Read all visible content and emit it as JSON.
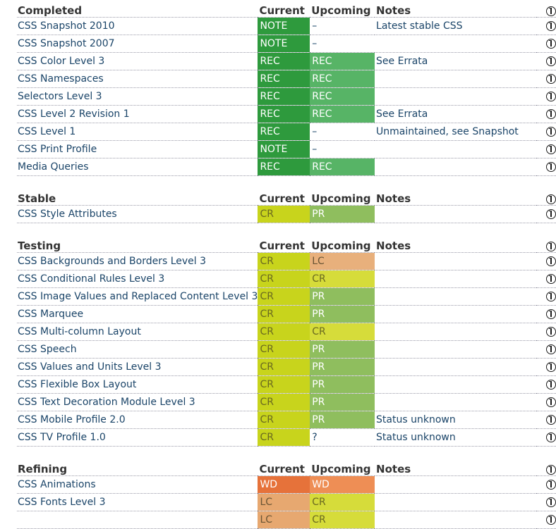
{
  "headers": {
    "current": "Current",
    "upcoming": "Upcoming",
    "notes": "Notes"
  },
  "sections": [
    {
      "title": "Completed",
      "rows": [
        {
          "name": "CSS Snapshot 2010",
          "current": "NOTE",
          "upcoming": "–",
          "notes": "Latest stable CSS",
          "cur_class": "s-NOTE",
          "up_class": "s-plain"
        },
        {
          "name": "CSS Snapshot 2007",
          "current": "NOTE",
          "upcoming": "–",
          "notes": "",
          "cur_class": "s-NOTE",
          "up_class": "s-plain"
        },
        {
          "name": "CSS Color Level 3",
          "current": "REC",
          "upcoming": "REC",
          "notes": "See Errata",
          "cur_class": "s-REC-cur",
          "up_class": "s-REC-up"
        },
        {
          "name": "CSS Namespaces",
          "current": "REC",
          "upcoming": "REC",
          "notes": "",
          "cur_class": "s-REC-cur",
          "up_class": "s-REC-up"
        },
        {
          "name": "Selectors Level 3",
          "current": "REC",
          "upcoming": "REC",
          "notes": "",
          "cur_class": "s-REC-cur",
          "up_class": "s-REC-up"
        },
        {
          "name": "CSS Level 2 Revision 1",
          "current": "REC",
          "upcoming": "REC",
          "notes": "See Errata",
          "cur_class": "s-REC-cur",
          "up_class": "s-REC-up"
        },
        {
          "name": "CSS Level 1",
          "current": "REC",
          "upcoming": "–",
          "notes": "Unmaintained, see Snapshot",
          "cur_class": "s-REC-cur",
          "up_class": "s-plain"
        },
        {
          "name": "CSS Print Profile",
          "current": "NOTE",
          "upcoming": "–",
          "notes": "",
          "cur_class": "s-NOTE",
          "up_class": "s-plain"
        },
        {
          "name": "Media Queries",
          "current": "REC",
          "upcoming": "REC",
          "notes": "",
          "cur_class": "s-REC-cur",
          "up_class": "s-REC-up"
        }
      ]
    },
    {
      "title": "Stable",
      "rows": [
        {
          "name": "CSS Style Attributes",
          "current": "CR",
          "upcoming": "PR",
          "notes": "",
          "cur_class": "s-CR",
          "up_class": "s-PR"
        }
      ]
    },
    {
      "title": "Testing",
      "rows": [
        {
          "name": "CSS Backgrounds and Borders Level 3",
          "current": "CR",
          "upcoming": "LC",
          "notes": "",
          "cur_class": "s-CR",
          "up_class": "s-LC"
        },
        {
          "name": "CSS Conditional Rules Level 3",
          "current": "CR",
          "upcoming": "CR",
          "notes": "",
          "cur_class": "s-CR",
          "up_class": "s-CRup"
        },
        {
          "name": "CSS Image Values and Replaced Content Level 3",
          "current": "CR",
          "upcoming": "PR",
          "notes": "",
          "cur_class": "s-CR",
          "up_class": "s-PR"
        },
        {
          "name": "CSS Marquee",
          "current": "CR",
          "upcoming": "PR",
          "notes": "",
          "cur_class": "s-CR",
          "up_class": "s-PR"
        },
        {
          "name": "CSS Multi-column Layout",
          "current": "CR",
          "upcoming": "CR",
          "notes": "",
          "cur_class": "s-CR",
          "up_class": "s-CRup"
        },
        {
          "name": "CSS Speech",
          "current": "CR",
          "upcoming": "PR",
          "notes": "",
          "cur_class": "s-CR",
          "up_class": "s-PR"
        },
        {
          "name": "CSS Values and Units Level 3",
          "current": "CR",
          "upcoming": "PR",
          "notes": "",
          "cur_class": "s-CR",
          "up_class": "s-PR"
        },
        {
          "name": "CSS Flexible Box Layout",
          "current": "CR",
          "upcoming": "PR",
          "notes": "",
          "cur_class": "s-CR",
          "up_class": "s-PR"
        },
        {
          "name": "CSS Text Decoration Module Level 3",
          "current": "CR",
          "upcoming": "PR",
          "notes": "",
          "cur_class": "s-CR",
          "up_class": "s-PR"
        },
        {
          "name": "CSS Mobile Profile 2.0",
          "current": "CR",
          "upcoming": "PR",
          "notes": "Status unknown",
          "cur_class": "s-CR",
          "up_class": "s-PR"
        },
        {
          "name": "CSS TV Profile 1.0",
          "current": "CR",
          "upcoming": "?",
          "notes": "Status unknown",
          "cur_class": "s-CR",
          "up_class": "s-plain"
        }
      ]
    },
    {
      "title": "Refining",
      "rows": [
        {
          "name": "CSS Animations",
          "current": "WD",
          "upcoming": "WD",
          "notes": "",
          "cur_class": "s-WD",
          "up_class": "s-WDup"
        },
        {
          "name": "CSS Fonts Level 3",
          "current": "LC",
          "upcoming": "CR",
          "notes": "",
          "cur_class": "s-LCcur",
          "up_class": "s-CRup"
        },
        {
          "name": "",
          "current": "LC",
          "upcoming": "CR",
          "notes": "",
          "cur_class": "s-LCcur",
          "up_class": "s-CRup"
        }
      ]
    }
  ]
}
